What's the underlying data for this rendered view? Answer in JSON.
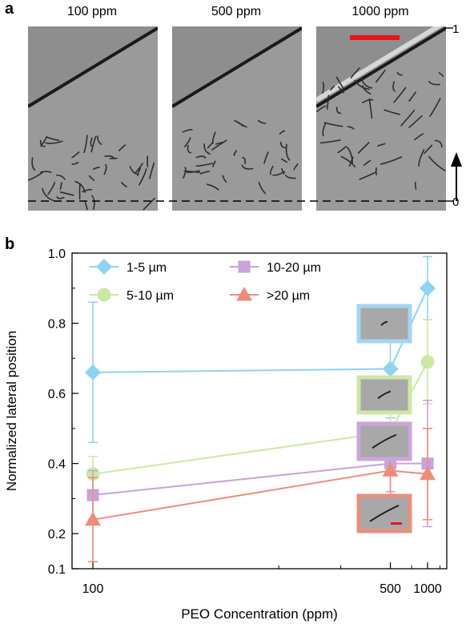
{
  "panel_a": {
    "letter": "a",
    "concentrations": [
      "100 ppm",
      "500 ppm",
      "1000 ppm"
    ],
    "scale_top": "1",
    "scale_bottom": "0",
    "colors": {
      "scale_bar": "#e8141b",
      "image_bg": "#9a9a9a",
      "wall": "#1a1a1a"
    }
  },
  "panel_b": {
    "letter": "b"
  },
  "chart_data": {
    "type": "line",
    "xlabel": "PEO Concentration (ppm)",
    "ylabel": "Normalized lateral position",
    "x_scale": "reciprocal",
    "x": [
      100,
      500,
      1000
    ],
    "x_ticks": [
      "100",
      "500",
      "1000"
    ],
    "ylim": [
      0.1,
      1.0
    ],
    "y_ticks": [
      "0.1",
      "0.2",
      "0.4",
      "0.6",
      "0.8",
      "1.0"
    ],
    "grid": false,
    "legend_position": "top-left",
    "series": [
      {
        "name": "1-5 µm",
        "marker": "diamond",
        "color": "#8fd3f0",
        "values": [
          0.66,
          0.67,
          0.9
        ],
        "err_low": [
          0.46,
          0.53,
          0.81
        ],
        "err_high": [
          0.86,
          0.81,
          0.99
        ]
      },
      {
        "name": "5-10 µm",
        "marker": "circle",
        "color": "#cce8a4",
        "values": [
          0.37,
          0.49,
          0.69
        ],
        "err_low": [
          0.32,
          0.41,
          0.57
        ],
        "err_high": [
          0.42,
          0.57,
          0.81
        ]
      },
      {
        "name": "10-20 µm",
        "marker": "square",
        "color": "#c8a2d8",
        "values": [
          0.31,
          0.4,
          0.4
        ],
        "err_low": [
          0.24,
          0.32,
          0.22
        ],
        "err_high": [
          0.38,
          0.48,
          0.58
        ]
      },
      {
        "name": ">20 µm",
        "marker": "triangle",
        "color": "#ec8d7c",
        "values": [
          0.24,
          0.38,
          0.37
        ],
        "err_low": [
          0.12,
          0.31,
          0.24
        ],
        "err_high": [
          0.36,
          0.45,
          0.5
        ]
      }
    ],
    "inset_frame_colors": [
      "#a3d6f0",
      "#cfe7a6",
      "#c9a6d9",
      "#e98f7f"
    ]
  }
}
